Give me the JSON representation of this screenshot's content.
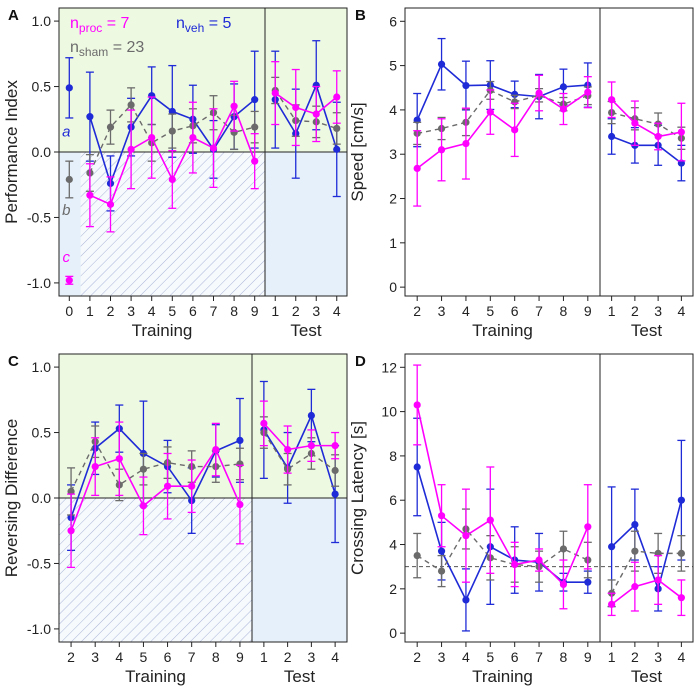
{
  "colors": {
    "proc": "#ff00ff",
    "veh": "#1f2bd6",
    "sham": "#6b6b6b",
    "green_bg": "#eef9e2",
    "blue_bg": "#e6f0fa"
  },
  "chart_data": [
    {
      "panel": "A",
      "type": "line",
      "ylabel": "Performance Index",
      "ylim": [
        -1.1,
        1.1
      ],
      "yticks": [
        "-1.0",
        "-0.5",
        "0.0",
        "0.5",
        "1.0"
      ],
      "xgroups": [
        {
          "name": "Training",
          "ticks": [
            "0",
            "1",
            "2",
            "3",
            "4",
            "5",
            "6",
            "7",
            "8",
            "9"
          ]
        },
        {
          "name": "Test",
          "ticks": [
            "1",
            "2",
            "3",
            "4"
          ]
        }
      ],
      "legend": {
        "proc": {
          "n": "n",
          "sub": "proc",
          "eq": " = 7"
        },
        "veh": {
          "n": "n",
          "sub": "veh",
          "eq": " = 5"
        },
        "sham": {
          "n": "n",
          "sub": "sham",
          "eq": " = 23"
        }
      },
      "annotations": {
        "veh": "a",
        "sham": "b",
        "proc": "c"
      },
      "series": [
        {
          "key": "veh",
          "name": "veh",
          "dashed": false,
          "training": [
            {
              "m": 0.49,
              "e": 0.23
            },
            {
              "m": 0.27,
              "e": 0.34
            },
            {
              "m": -0.24,
              "e": 0.21
            },
            {
              "m": 0.19,
              "e": 0.22
            },
            {
              "m": 0.43,
              "e": 0.22
            },
            {
              "m": 0.31,
              "e": 0.35
            },
            {
              "m": 0.25,
              "e": 0.26
            },
            {
              "m": 0.02,
              "e": 0.22
            },
            {
              "m": 0.27,
              "e": 0.25
            },
            {
              "m": 0.4,
              "e": 0.37
            }
          ],
          "test": [
            {
              "m": 0.4,
              "e": 0.37
            },
            {
              "m": 0.14,
              "e": 0.34
            },
            {
              "m": 0.51,
              "e": 0.34
            },
            {
              "m": 0.02,
              "e": 0.36
            }
          ]
        },
        {
          "key": "proc",
          "name": "proc",
          "dashed": false,
          "training": [
            {
              "m": -0.98,
              "e": 0.03
            },
            {
              "m": -0.33,
              "e": 0.24
            },
            {
              "m": -0.4,
              "e": 0.21
            },
            {
              "m": 0.02,
              "e": 0.3
            },
            {
              "m": 0.11,
              "e": 0.31
            },
            {
              "m": -0.21,
              "e": 0.22
            },
            {
              "m": 0.11,
              "e": 0.27
            },
            {
              "m": 0.03,
              "e": 0.3
            },
            {
              "m": 0.35,
              "e": 0.19
            },
            {
              "m": -0.07,
              "e": 0.21
            }
          ],
          "test": [
            {
              "m": 0.45,
              "e": 0.24
            },
            {
              "m": 0.34,
              "e": 0.29
            },
            {
              "m": 0.29,
              "e": 0.21
            },
            {
              "m": 0.42,
              "e": 0.2
            }
          ]
        },
        {
          "key": "sham",
          "name": "sham",
          "dashed": true,
          "training": [
            {
              "m": -0.21,
              "e": 0.14
            },
            {
              "m": -0.16,
              "e": 0.14
            },
            {
              "m": 0.19,
              "e": 0.13
            },
            {
              "m": 0.36,
              "e": 0.13
            },
            {
              "m": 0.07,
              "e": 0.14
            },
            {
              "m": 0.16,
              "e": 0.13
            },
            {
              "m": 0.2,
              "e": 0.13
            },
            {
              "m": 0.3,
              "e": 0.13
            },
            {
              "m": 0.15,
              "e": 0.13
            },
            {
              "m": 0.19,
              "e": 0.12
            }
          ],
          "test": [
            {
              "m": 0.47,
              "e": 0.1
            },
            {
              "m": 0.24,
              "e": 0.12
            },
            {
              "m": 0.23,
              "e": 0.12
            },
            {
              "m": 0.18,
              "e": 0.12
            }
          ]
        }
      ]
    },
    {
      "panel": "B",
      "type": "line",
      "ylabel": "Speed [cm/s]",
      "ylim": [
        -0.2,
        6.3
      ],
      "yticks": [
        "0",
        "1",
        "2",
        "3",
        "4",
        "5",
        "6"
      ],
      "xgroups": [
        {
          "name": "Training",
          "ticks": [
            "2",
            "3",
            "4",
            "5",
            "6",
            "7",
            "8",
            "9"
          ]
        },
        {
          "name": "Test",
          "ticks": [
            "1",
            "2",
            "3",
            "4"
          ]
        }
      ],
      "series": [
        {
          "key": "veh",
          "name": "veh",
          "dashed": false,
          "training": [
            {
              "m": 3.77,
              "e": 0.6
            },
            {
              "m": 5.03,
              "e": 0.58
            },
            {
              "m": 4.55,
              "e": 0.55
            },
            {
              "m": 4.56,
              "e": 0.55
            },
            {
              "m": 4.35,
              "e": 0.3
            },
            {
              "m": 4.3,
              "e": 0.5
            },
            {
              "m": 4.52,
              "e": 0.4
            },
            {
              "m": 4.56,
              "e": 0.5
            }
          ],
          "test": [
            {
              "m": 3.4,
              "e": 0.4
            },
            {
              "m": 3.2,
              "e": 0.4
            },
            {
              "m": 3.2,
              "e": 0.45
            },
            {
              "m": 2.8,
              "e": 0.4
            }
          ]
        },
        {
          "key": "proc",
          "name": "proc",
          "dashed": false,
          "training": [
            {
              "m": 2.68,
              "e": 0.85
            },
            {
              "m": 3.1,
              "e": 0.7
            },
            {
              "m": 3.24,
              "e": 0.8
            },
            {
              "m": 3.95,
              "e": 0.5
            },
            {
              "m": 3.55,
              "e": 0.6
            },
            {
              "m": 4.38,
              "e": 0.4
            },
            {
              "m": 4.02,
              "e": 0.35
            },
            {
              "m": 4.4,
              "e": 0.35
            }
          ],
          "test": [
            {
              "m": 4.23,
              "e": 0.4
            },
            {
              "m": 3.7,
              "e": 0.5
            },
            {
              "m": 3.4,
              "e": 0.3
            },
            {
              "m": 3.5,
              "e": 0.65
            }
          ]
        },
        {
          "key": "sham",
          "name": "sham",
          "dashed": true,
          "training": [
            {
              "m": 3.47,
              "e": 0.25
            },
            {
              "m": 3.58,
              "e": 0.25
            },
            {
              "m": 3.72,
              "e": 0.3
            },
            {
              "m": 4.44,
              "e": 0.2
            },
            {
              "m": 4.18,
              "e": 0.15
            },
            {
              "m": 4.33,
              "e": 0.15
            },
            {
              "m": 4.13,
              "e": 0.15
            },
            {
              "m": 4.32,
              "e": 0.2
            }
          ],
          "test": [
            {
              "m": 3.94,
              "e": 0.25
            },
            {
              "m": 3.8,
              "e": 0.25
            },
            {
              "m": 3.68,
              "e": 0.25
            },
            {
              "m": 3.36,
              "e": 0.25
            }
          ]
        }
      ]
    },
    {
      "panel": "C",
      "type": "line",
      "ylabel": "Reversing Difference",
      "ylim": [
        -1.1,
        1.1
      ],
      "yticks": [
        "-1.0",
        "-0.5",
        "0.0",
        "0.5",
        "1.0"
      ],
      "xgroups": [
        {
          "name": "Training",
          "ticks": [
            "2",
            "3",
            "4",
            "5",
            "6",
            "7",
            "8",
            "9"
          ]
        },
        {
          "name": "Test",
          "ticks": [
            "1",
            "2",
            "3",
            "4"
          ]
        }
      ],
      "series": [
        {
          "key": "veh",
          "name": "veh",
          "dashed": false,
          "training": [
            {
              "m": -0.15,
              "e": 0.25
            },
            {
              "m": 0.38,
              "e": 0.2
            },
            {
              "m": 0.53,
              "e": 0.18
            },
            {
              "m": 0.34,
              "e": 0.4
            },
            {
              "m": 0.24,
              "e": 0.2
            },
            {
              "m": -0.02,
              "e": 0.25
            },
            {
              "m": 0.36,
              "e": 0.2
            },
            {
              "m": 0.44,
              "e": 0.32
            }
          ],
          "test": [
            {
              "m": 0.52,
              "e": 0.37
            },
            {
              "m": 0.23,
              "e": 0.27
            },
            {
              "m": 0.63,
              "e": 0.2
            },
            {
              "m": 0.03,
              "e": 0.37
            }
          ]
        },
        {
          "key": "proc",
          "name": "proc",
          "dashed": false,
          "training": [
            {
              "m": -0.25,
              "e": 0.28
            },
            {
              "m": 0.24,
              "e": 0.22
            },
            {
              "m": 0.3,
              "e": 0.28
            },
            {
              "m": -0.06,
              "e": 0.22
            },
            {
              "m": 0.09,
              "e": 0.25
            },
            {
              "m": 0.09,
              "e": 0.2
            },
            {
              "m": 0.37,
              "e": 0.2
            },
            {
              "m": -0.05,
              "e": 0.3
            }
          ],
          "test": [
            {
              "m": 0.57,
              "e": 0.17
            },
            {
              "m": 0.37,
              "e": 0.18
            },
            {
              "m": 0.4,
              "e": 0.12
            },
            {
              "m": 0.4,
              "e": 0.1
            }
          ]
        },
        {
          "key": "sham",
          "name": "sham",
          "dashed": true,
          "training": [
            {
              "m": 0.05,
              "e": 0.18
            },
            {
              "m": 0.43,
              "e": 0.12
            },
            {
              "m": 0.1,
              "e": 0.12
            },
            {
              "m": 0.22,
              "e": 0.12
            },
            {
              "m": 0.27,
              "e": 0.12
            },
            {
              "m": 0.24,
              "e": 0.12
            },
            {
              "m": 0.24,
              "e": 0.12
            },
            {
              "m": 0.26,
              "e": 0.12
            }
          ],
          "test": [
            {
              "m": 0.5,
              "e": 0.12
            },
            {
              "m": 0.22,
              "e": 0.12
            },
            {
              "m": 0.34,
              "e": 0.12
            },
            {
              "m": 0.21,
              "e": 0.12
            }
          ]
        }
      ]
    },
    {
      "panel": "D",
      "type": "line",
      "ylabel": "Crossing Latency [s]",
      "ylim": [
        -0.4,
        12.6
      ],
      "yticks": [
        "0",
        "2",
        "4",
        "6",
        "8",
        "10",
        "12"
      ],
      "reference_line": 3.0,
      "xgroups": [
        {
          "name": "Training",
          "ticks": [
            "2",
            "3",
            "4",
            "5",
            "6",
            "7",
            "8",
            "9"
          ]
        },
        {
          "name": "Test",
          "ticks": [
            "1",
            "2",
            "3",
            "4"
          ]
        }
      ],
      "series": [
        {
          "key": "veh",
          "name": "veh",
          "dashed": false,
          "training": [
            {
              "m": 7.5,
              "e": 2.2
            },
            {
              "m": 3.7,
              "e": 1.3
            },
            {
              "m": 1.5,
              "e": 1.4
            },
            {
              "m": 3.9,
              "e": 2.6
            },
            {
              "m": 3.3,
              "e": 1.5
            },
            {
              "m": 3.2,
              "e": 1.3
            },
            {
              "m": 2.3,
              "e": 0.4
            },
            {
              "m": 2.3,
              "e": 0.5
            }
          ],
          "test": [
            {
              "m": 3.9,
              "e": 2.7
            },
            {
              "m": 4.9,
              "e": 1.6
            },
            {
              "m": 2.0,
              "e": 1.0
            },
            {
              "m": 6.0,
              "e": 2.7
            }
          ]
        },
        {
          "key": "proc",
          "name": "proc",
          "dashed": false,
          "training": [
            {
              "m": 10.3,
              "e": 1.8
            },
            {
              "m": 5.3,
              "e": 1.4
            },
            {
              "m": 4.4,
              "e": 2.1
            },
            {
              "m": 5.1,
              "e": 2.4
            },
            {
              "m": 3.1,
              "e": 1.0
            },
            {
              "m": 3.3,
              "e": 0.5
            },
            {
              "m": 2.2,
              "e": 1.1
            },
            {
              "m": 4.8,
              "e": 1.9
            }
          ],
          "test": [
            {
              "m": 1.3,
              "e": 0.5
            },
            {
              "m": 2.1,
              "e": 1.1
            },
            {
              "m": 2.4,
              "e": 1.1
            },
            {
              "m": 1.6,
              "e": 0.8
            }
          ]
        },
        {
          "key": "sham",
          "name": "sham",
          "dashed": true,
          "training": [
            {
              "m": 3.5,
              "e": 1.0
            },
            {
              "m": 2.8,
              "e": 0.7
            },
            {
              "m": 4.7,
              "e": 0.9
            },
            {
              "m": 3.4,
              "e": 1.0
            },
            {
              "m": 3.1,
              "e": 0.8
            },
            {
              "m": 3.0,
              "e": 0.7
            },
            {
              "m": 3.8,
              "e": 0.8
            },
            {
              "m": 3.3,
              "e": 0.8
            }
          ],
          "test": [
            {
              "m": 1.8,
              "e": 0.6
            },
            {
              "m": 3.7,
              "e": 0.9
            },
            {
              "m": 3.6,
              "e": 0.9
            },
            {
              "m": 3.6,
              "e": 0.8
            }
          ]
        }
      ]
    }
  ]
}
